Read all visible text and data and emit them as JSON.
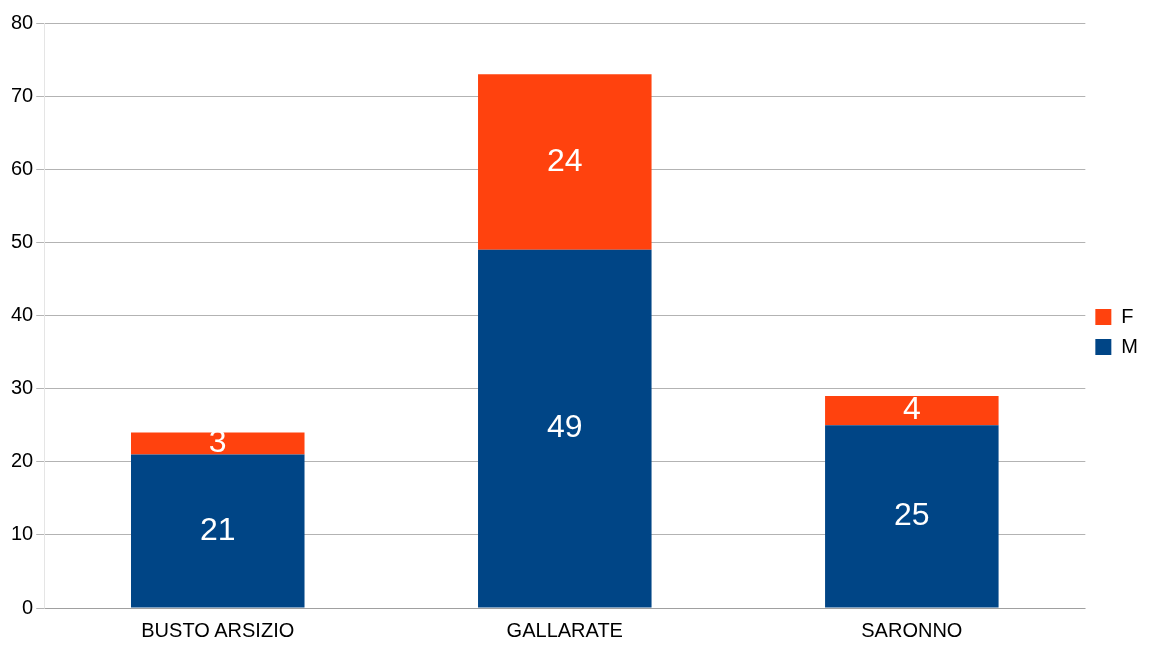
{
  "chart_data": {
    "type": "bar",
    "stacked": true,
    "categories": [
      "BUSTO ARSIZIO",
      "GALLARATE",
      "SARONNO"
    ],
    "series": [
      {
        "name": "M",
        "color": "#004586",
        "values": [
          21,
          49,
          25
        ]
      },
      {
        "name": "F",
        "color": "#ff420e",
        "values": [
          3,
          24,
          4
        ]
      }
    ],
    "ylim": [
      0,
      80
    ],
    "yticks": [
      0,
      10,
      20,
      30,
      40,
      50,
      60,
      70,
      80
    ],
    "grid": "y",
    "legend": "right",
    "data_labels": true
  }
}
